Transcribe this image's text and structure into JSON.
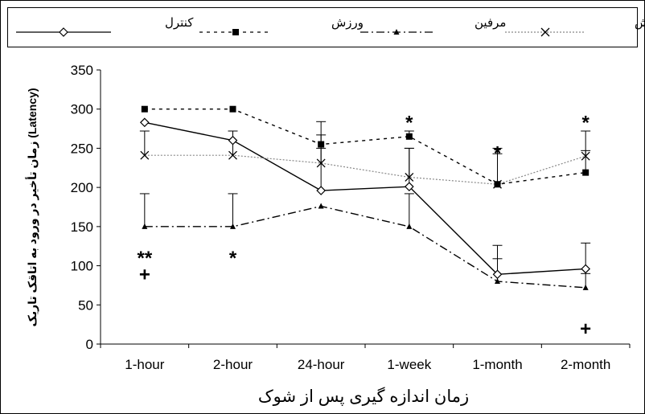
{
  "chart_data": {
    "type": "line",
    "categories": [
      "1-hour",
      "2-hour",
      "24-hour",
      "1-week",
      "1-month",
      "2-month"
    ],
    "xlabel": "زمان اندازه گیری پس از شوک",
    "ylabel": "زمان تأخیر در ورود به اتاقک تاریک (Latency)",
    "ylim": [
      0,
      350
    ],
    "yticks": [
      0,
      50,
      100,
      150,
      200,
      250,
      300,
      350
    ],
    "grid": false,
    "legend_position": "top",
    "series": [
      {
        "name": "کنترل",
        "color": "#000000",
        "dash": "",
        "marker": "diamond-open",
        "values": [
          283,
          260,
          196,
          201,
          89,
          96
        ],
        "error_up": [
          272,
          272,
          267,
          250,
          126,
          129
        ]
      },
      {
        "name": "ورزش",
        "color": "#000000",
        "dash": "4,5",
        "marker": "square",
        "values": [
          300,
          300,
          255,
          265,
          204,
          219
        ],
        "error_up": [
          300,
          300,
          284,
          272,
          243,
          247
        ]
      },
      {
        "name": "مرفین",
        "color": "#000000",
        "dash": "10,4,2,4",
        "marker": "triangle",
        "values": [
          150,
          150,
          176,
          150,
          80,
          72
        ],
        "error_up": [
          192,
          192,
          176,
          192,
          109,
          90
        ]
      },
      {
        "name": "مرفین - ورزش",
        "color": "#888888",
        "dash": "2,2",
        "marker": "x",
        "values": [
          241,
          241,
          231,
          213,
          204,
          240
        ],
        "error_up": [
          272,
          272,
          250,
          250,
          250,
          272
        ]
      }
    ],
    "annotations": [
      {
        "text": "**",
        "category": "1-hour",
        "y": 108
      },
      {
        "text": "+",
        "category": "1-hour",
        "y": 87
      },
      {
        "text": "*",
        "category": "2-hour",
        "y": 108
      },
      {
        "text": "*",
        "category": "1-week",
        "y": 281
      },
      {
        "text": "*",
        "category": "1-month",
        "y": 242
      },
      {
        "text": "*",
        "category": "2-month",
        "y": 281
      },
      {
        "text": "+",
        "category": "2-month",
        "y": 18
      }
    ]
  }
}
